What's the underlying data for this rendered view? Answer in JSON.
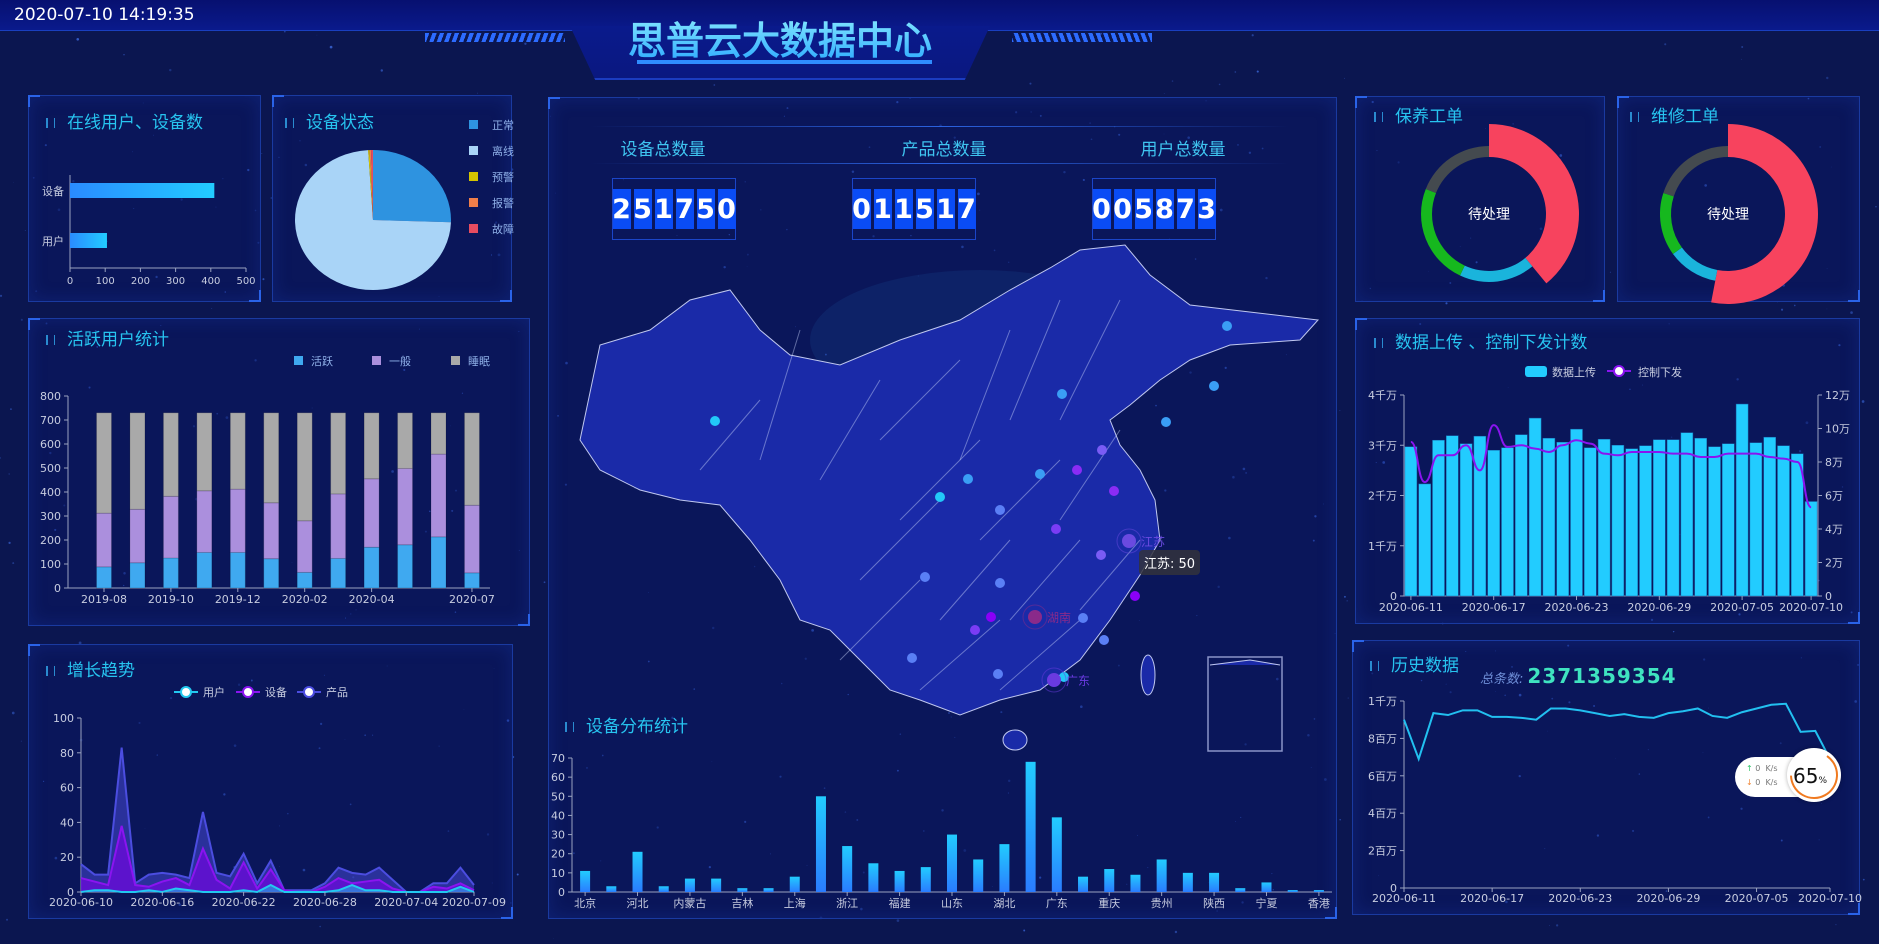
{
  "header": {
    "datetime": "2020-07-10 14:19:35",
    "title": "思普云大数据中心"
  },
  "online": {
    "title": "在线用户、设备数",
    "categories": [
      "设备",
      "用户"
    ],
    "values": [
      410,
      105
    ],
    "xticks": [
      "0",
      "100",
      "200",
      "300",
      "400",
      "500"
    ],
    "xlim": [
      0,
      500
    ],
    "color_from": "#2a8bff",
    "color_to": "#22ccff"
  },
  "device_status": {
    "title": "设备状态",
    "type": "pie",
    "labels": [
      "正常",
      "离线",
      "预警",
      "报警",
      "故障"
    ],
    "values": [
      25.5,
      73.5,
      0.3,
      0.3,
      0.4
    ],
    "colors": [
      "#2e93e0",
      "#a9d4f7",
      "#d4c400",
      "#f07f4a",
      "#e74c60"
    ]
  },
  "active_users": {
    "title": "活跃用户统计",
    "type": "bar",
    "stacked": true,
    "categories": [
      "2019-08",
      "2019-09",
      "2019-10",
      "2019-11",
      "2019-12",
      "2020-01",
      "2020-02",
      "2020-03",
      "2020-04",
      "2020-05",
      "2020-06",
      "2020-07"
    ],
    "shown_labels": [
      "2019-08",
      "2019-10",
      "2019-12",
      "2020-02",
      "2020-04",
      "2020-07"
    ],
    "series": [
      {
        "name": "活跃",
        "color": "#3fa9f0",
        "values": [
          88,
          105,
          125,
          148,
          148,
          122,
          65,
          123,
          170,
          180,
          213,
          63
        ]
      },
      {
        "name": "一般",
        "color": "#ab8fdd",
        "values": [
          224,
          223,
          257,
          257,
          264,
          233,
          215,
          269,
          285,
          318,
          345,
          282
        ]
      },
      {
        "name": "睡眠",
        "color": "#a9a9a9",
        "values": [
          418,
          402,
          348,
          325,
          318,
          375,
          450,
          338,
          275,
          232,
          172,
          385
        ]
      }
    ],
    "yticks": [
      "0",
      "100",
      "200",
      "300",
      "400",
      "500",
      "600",
      "700",
      "800"
    ],
    "ylim": [
      0,
      800
    ]
  },
  "growth": {
    "title": "增长趋势",
    "type": "area",
    "x": [
      "2020-06-10",
      "2020-06-11",
      "2020-06-12",
      "2020-06-13",
      "2020-06-14",
      "2020-06-15",
      "2020-06-16",
      "2020-06-17",
      "2020-06-18",
      "2020-06-19",
      "2020-06-20",
      "2020-06-21",
      "2020-06-22",
      "2020-06-23",
      "2020-06-24",
      "2020-06-25",
      "2020-06-26",
      "2020-06-27",
      "2020-06-28",
      "2020-06-29",
      "2020-06-30",
      "2020-07-01",
      "2020-07-02",
      "2020-07-03",
      "2020-07-04",
      "2020-07-05",
      "2020-07-06",
      "2020-07-07",
      "2020-07-08",
      "2020-07-09"
    ],
    "shown_labels": [
      "2020-06-10",
      "2020-06-16",
      "2020-06-22",
      "2020-06-28",
      "2020-07-04",
      "2020-07-09"
    ],
    "series": [
      {
        "name": "产品",
        "color": "#4b4de0",
        "values": [
          16,
          10,
          10,
          83,
          5,
          10,
          11,
          10,
          8,
          46,
          11,
          9,
          22,
          5,
          18,
          1,
          1,
          1,
          5,
          14,
          11,
          10,
          14,
          7,
          0,
          0,
          5,
          5,
          14,
          4
        ]
      },
      {
        "name": "设备",
        "color": "#8a14f0",
        "values": [
          8,
          6,
          4,
          38,
          4,
          3,
          6,
          8,
          4,
          25,
          7,
          2,
          17,
          2,
          13,
          1,
          0,
          0,
          3,
          8,
          5,
          6,
          7,
          2,
          0,
          0,
          3,
          2,
          5,
          1
        ]
      },
      {
        "name": "用户",
        "color": "#22c8f0",
        "values": [
          0,
          1,
          1,
          0,
          0,
          1,
          0,
          2,
          1,
          0,
          0,
          0,
          1,
          0,
          4,
          0,
          0,
          0,
          0,
          1,
          4,
          1,
          1,
          0,
          0,
          0,
          0,
          0,
          3,
          0
        ]
      }
    ],
    "legend_order": [
      "用户",
      "设备",
      "产品"
    ],
    "yticks": [
      "0",
      "20",
      "40",
      "60",
      "80",
      "100"
    ],
    "ylim": [
      0,
      100
    ]
  },
  "center": {
    "stats": [
      {
        "label": "设备总数量",
        "digits": [
          "2",
          "5",
          "1",
          "7",
          "5",
          "0"
        ]
      },
      {
        "label": "产品总数量",
        "digits": [
          "0",
          "1",
          "1",
          "5",
          "1",
          "7"
        ]
      },
      {
        "label": "用户总数量",
        "digits": [
          "0",
          "0",
          "5",
          "8",
          "7",
          "3"
        ]
      }
    ],
    "map": {
      "labels": [
        "江苏",
        "湖南",
        "广东"
      ],
      "tooltip": "江苏: 50"
    }
  },
  "distribution": {
    "title": "设备分布统计",
    "type": "bar",
    "categories": [
      "北京",
      "",
      "河北",
      "",
      "内蒙古",
      "",
      "吉林",
      "",
      "上海",
      "",
      "浙江",
      "",
      "福建",
      "",
      "山东",
      "",
      "湖北",
      "",
      "广东",
      "",
      "重庆",
      "",
      "贵州",
      "",
      "陕西",
      "",
      "宁夏",
      "",
      "香港"
    ],
    "values": [
      11,
      3,
      21,
      3,
      7,
      7,
      2,
      2,
      8,
      50,
      24,
      15,
      11,
      13,
      30,
      17,
      25,
      68,
      39,
      8,
      12,
      9,
      17,
      10,
      10,
      2,
      5,
      1,
      1
    ],
    "yticks": [
      "0",
      "10",
      "20",
      "30",
      "40",
      "50",
      "60",
      "70"
    ],
    "ylim": [
      0,
      70
    ]
  },
  "maintenance": {
    "title": "保养工单",
    "center_label": "待处理",
    "values": [
      39,
      18,
      24,
      19
    ],
    "colors": [
      "#f7435e",
      "#1ab4dc",
      "#16b81e",
      "#444a4f"
    ]
  },
  "repair": {
    "title": "维修工单",
    "center_label": "待处理",
    "values": [
      53,
      12,
      15,
      20
    ],
    "colors": [
      "#f7435e",
      "#1ab4dc",
      "#16b81e",
      "#444a4f"
    ]
  },
  "upload": {
    "title": "数据上传 、控制下发计数",
    "type": "bar+line",
    "x": [
      "2020-06-11",
      "2020-06-12",
      "2020-06-13",
      "2020-06-14",
      "2020-06-15",
      "2020-06-16",
      "2020-06-17",
      "2020-06-18",
      "2020-06-19",
      "2020-06-20",
      "2020-06-21",
      "2020-06-22",
      "2020-06-23",
      "2020-06-24",
      "2020-06-25",
      "2020-06-26",
      "2020-06-27",
      "2020-06-28",
      "2020-06-29",
      "2020-06-30",
      "2020-07-01",
      "2020-07-02",
      "2020-07-03",
      "2020-07-04",
      "2020-07-05",
      "2020-07-06",
      "2020-07-07",
      "2020-07-08",
      "2020-07-09",
      "2020-07-10"
    ],
    "shown_labels": [
      "2020-06-11",
      "2020-06-17",
      "2020-06-23",
      "2020-06-29",
      "2020-07-05",
      "2020-07-10"
    ],
    "bar": {
      "name": "数据上传",
      "color": "#22ccff",
      "unit": "千万",
      "values": [
        2.97,
        2.23,
        3.1,
        3.19,
        3.03,
        3.18,
        2.9,
        2.95,
        3.21,
        3.54,
        3.14,
        3.06,
        3.32,
        2.95,
        3.12,
        3.0,
        2.93,
        2.99,
        3.11,
        3.11,
        3.25,
        3.14,
        2.97,
        3.03,
        3.82,
        3.05,
        3.16,
        2.99,
        2.83,
        1.88
      ]
    },
    "line": {
      "name": "控制下发",
      "color": "#8a14f0",
      "unit": "万",
      "values": [
        9.2,
        6.8,
        8.4,
        8.4,
        9.0,
        7.5,
        10.2,
        8.9,
        9.0,
        8.8,
        8.6,
        9.0,
        9.3,
        9.1,
        8.5,
        8.4,
        8.6,
        8.6,
        8.6,
        8.5,
        8.5,
        8.3,
        8.3,
        8.5,
        8.5,
        8.5,
        8.3,
        8.2,
        8.0,
        5.3
      ]
    },
    "yticks_left": [
      "0",
      "1千万",
      "2千万",
      "3千万",
      "4千万"
    ],
    "yticks_right": [
      "0",
      "2万",
      "4万",
      "6万",
      "8万",
      "10万",
      "12万"
    ],
    "ylim_left": [
      0,
      4
    ],
    "ylim_right": [
      0,
      12
    ]
  },
  "history": {
    "title": "历史数据",
    "type": "line",
    "total_label": "总条数:",
    "total_value": "2371359354",
    "x": [
      "2020-06-11",
      "2020-06-12",
      "2020-06-13",
      "2020-06-14",
      "2020-06-15",
      "2020-06-16",
      "2020-06-17",
      "2020-06-18",
      "2020-06-19",
      "2020-06-20",
      "2020-06-21",
      "2020-06-22",
      "2020-06-23",
      "2020-06-24",
      "2020-06-25",
      "2020-06-26",
      "2020-06-27",
      "2020-06-28",
      "2020-06-29",
      "2020-06-30",
      "2020-07-01",
      "2020-07-02",
      "2020-07-03",
      "2020-07-04",
      "2020-07-05",
      "2020-07-06",
      "2020-07-07",
      "2020-07-08",
      "2020-07-09",
      "2020-07-10"
    ],
    "shown_labels": [
      "2020-06-11",
      "2020-06-17",
      "2020-06-23",
      "2020-06-29",
      "2020-07-05",
      "2020-07-10"
    ],
    "values_millions": [
      9.0,
      6.9,
      9.35,
      9.25,
      9.5,
      9.5,
      9.15,
      9.15,
      9.1,
      9.0,
      9.6,
      9.6,
      9.5,
      9.35,
      9.2,
      9.3,
      9.15,
      9.1,
      9.35,
      9.45,
      9.6,
      9.2,
      9.1,
      9.4,
      9.6,
      9.8,
      9.85,
      8.35,
      8.4,
      6.9
    ],
    "color": "#22c0f0",
    "yticks": [
      "0",
      "2百万",
      "4百万",
      "6百万",
      "8百万",
      "1千万"
    ],
    "ylim": [
      0,
      10
    ]
  },
  "net_widget": {
    "up": "0",
    "down": "0",
    "unit": "K/s",
    "percent": 65,
    "percent_sign": "%"
  }
}
